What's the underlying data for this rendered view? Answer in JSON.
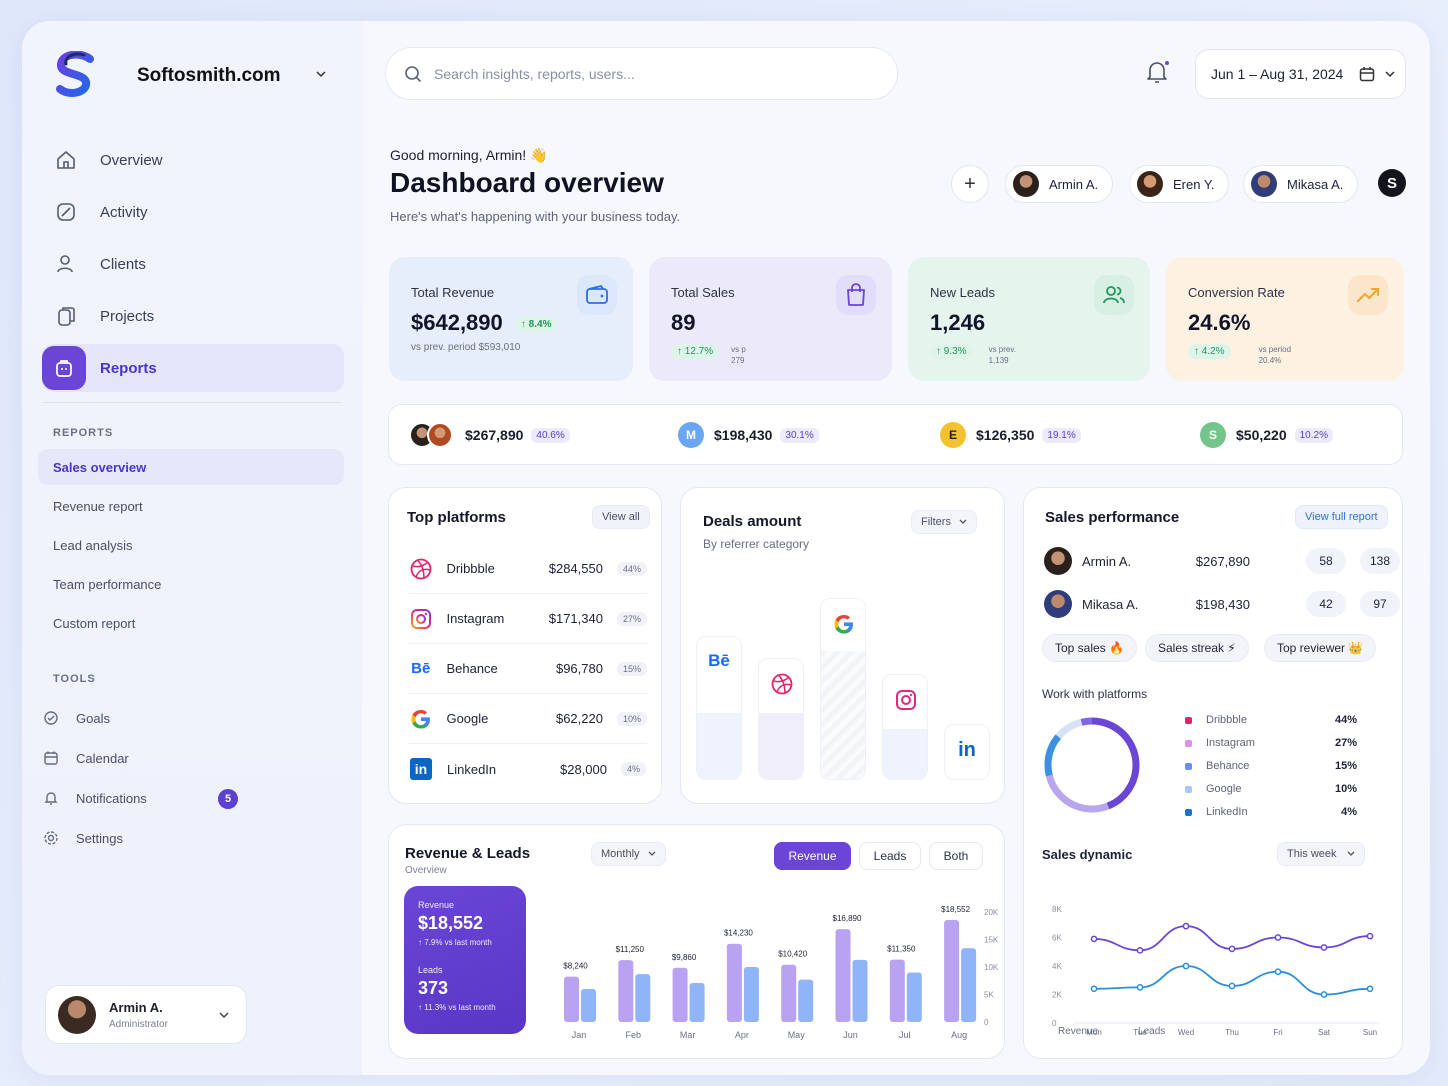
{
  "brand": {
    "name": "Softosmith.com"
  },
  "nav": [
    {
      "label": "Overview"
    },
    {
      "label": "Activity"
    },
    {
      "label": "Clients"
    },
    {
      "label": "Projects"
    },
    {
      "label": "Reports"
    }
  ],
  "reports_section": {
    "title": "REPORTS",
    "items": [
      "Sales overview",
      "Revenue report",
      "Lead analysis",
      "Team performance",
      "Custom report"
    ]
  },
  "tools_section": {
    "title": "TOOLS",
    "items": [
      "Goals",
      "Calendar",
      "Notifications",
      "Settings"
    ],
    "notifications_count": "5"
  },
  "user": {
    "name": "Armin A.",
    "role": "Administrator"
  },
  "search": {
    "placeholder": "Search insights, reports, users..."
  },
  "date_range": "Jun 1 – Aug 31, 2024",
  "header": {
    "greeting": "Good morning, Armin! 👋",
    "title": "Dashboard overview",
    "subtitle": "Here's what's happening with your business today.",
    "team": [
      "Armin A.",
      "Eren Y.",
      "Mikasa A."
    ],
    "account_initial": "S"
  },
  "stats": [
    {
      "label": "Total Revenue",
      "value": "$642,890",
      "change": "↑ 8.4%",
      "note": "vs prev. period  $593,010",
      "icon": "wallet-icon",
      "color": "#2c6fe0"
    },
    {
      "label": "Total Sales",
      "value": "89",
      "change": "↑ 12.7%",
      "note_a": "vs p",
      "note_b": "279",
      "icon": "shopping-bag-icon",
      "color": "#6a45d6"
    },
    {
      "label": "New Leads",
      "value": "1,246",
      "change": "↑ 9.3%",
      "note_a": "vs prev.",
      "note_b": "1,139",
      "icon": "users-icon",
      "color": "#1c9a5a"
    },
    {
      "label": "Conversion Rate",
      "value": "24.6%",
      "change": "↑ 4.2%",
      "note_a": "vs period",
      "note_b": "20.4%",
      "icon": "trend-up-icon",
      "color": "#f0a623"
    }
  ],
  "referrers": [
    {
      "value": "$267,890",
      "pct": "40.6%"
    },
    {
      "initial": "M",
      "value": "$198,430",
      "pct": "30.1%",
      "color": "#6aa6f2"
    },
    {
      "initial": "E",
      "value": "$126,350",
      "pct": "19.1%",
      "color": "#f2c230"
    },
    {
      "initial": "S",
      "value": "$50,220",
      "pct": "10.2%",
      "color": "#74c58c"
    }
  ],
  "top_platforms": {
    "title": "Top platforms",
    "action": "View all",
    "rows": [
      {
        "name": "Dribbble",
        "value": "$284,550",
        "pct": "44%",
        "icon": "dribbble-icon"
      },
      {
        "name": "Instagram",
        "value": "$171,340",
        "pct": "27%",
        "icon": "instagram-icon"
      },
      {
        "name": "Behance",
        "value": "$96,780",
        "pct": "15%",
        "icon": "behance-icon"
      },
      {
        "name": "Google",
        "value": "$62,220",
        "pct": "10%",
        "icon": "google-icon"
      },
      {
        "name": "LinkedIn",
        "value": "$28,000",
        "pct": "4%",
        "icon": "linkedin-icon"
      }
    ]
  },
  "deals": {
    "title": "Deals amount",
    "subtitle": "By referrer category",
    "filter": "Filters",
    "behance_label": "Bē",
    "linkedin_label": "in"
  },
  "sales_performance": {
    "title": "Sales performance",
    "action": "View full report",
    "rows": [
      {
        "name": "Armin A.",
        "amount": "$267,890",
        "a": "58",
        "b": "138"
      },
      {
        "name": "Mikasa A.",
        "amount": "$198,430",
        "a": "42",
        "b": "97"
      }
    ],
    "tags": [
      "Top sales 🔥",
      "Sales streak ⚡",
      "Top reviewer 👑"
    ],
    "platforms_title": "Work with platforms",
    "platforms": [
      {
        "name": "Dribbble",
        "pct": "44%",
        "color": "#e0246b"
      },
      {
        "name": "Instagram",
        "pct": "27%",
        "color": "#d993e6"
      },
      {
        "name": "Behance",
        "pct": "15%",
        "color": "#6c8ef2"
      },
      {
        "name": "Google",
        "pct": "10%",
        "color": "#a9c7f4"
      },
      {
        "name": "LinkedIn",
        "pct": "4%",
        "color": "#1a72c9"
      }
    ],
    "dynamic_title": "Sales dynamic",
    "dynamic_range": "This week"
  },
  "revenue_leads": {
    "title": "Revenue & Leads",
    "subtitle": "Overview",
    "period": "Monthly",
    "tabs": [
      "Revenue",
      "Leads",
      "Both"
    ],
    "summary": {
      "revenue_label": "Revenue",
      "revenue_value": "$18,552",
      "revenue_change": "↑ 7.9% vs last month",
      "leads_label": "Leads",
      "leads_value": "373",
      "leads_change": "↑ 11.3% vs last month"
    }
  },
  "chart_data": [
    {
      "type": "bar",
      "title": "Revenue & Leads",
      "categories": [
        "Jan",
        "Feb",
        "Mar",
        "Apr",
        "May",
        "Jun",
        "Jul",
        "Aug"
      ],
      "series": [
        {
          "name": "Revenue",
          "values": [
            8240,
            11250,
            9860,
            14230,
            10420,
            16890,
            11350,
            18552
          ],
          "labels": [
            "$8,240",
            "$11,250",
            "$9,860",
            "$14,230",
            "$10,420",
            "$16,890",
            "$11,350",
            "$18,552"
          ],
          "color": "#b9a2f2"
        },
        {
          "name": "Leads",
          "values": [
            6000,
            8700,
            7100,
            10000,
            7700,
            11300,
            9000,
            13400
          ],
          "color": "#8fb4f8"
        }
      ],
      "yticks": [
        "20K",
        "15K",
        "10K",
        "5K",
        "0"
      ],
      "ylim": [
        0,
        20000
      ]
    },
    {
      "type": "line",
      "title": "Sales dynamic",
      "categories": [
        "Mon",
        "Tue",
        "Wed",
        "Thu",
        "Fri",
        "Sat",
        "Sun"
      ],
      "series": [
        {
          "name": "Revenue",
          "values": [
            5900,
            5100,
            6800,
            5200,
            6000,
            5300,
            6100
          ],
          "color": "#6a45d6"
        },
        {
          "name": "Leads",
          "values": [
            2400,
            2500,
            4000,
            2600,
            3600,
            2000,
            2400
          ],
          "color": "#2b8fdc"
        }
      ],
      "yticks": [
        "8K",
        "6K",
        "4K",
        "2K",
        "0"
      ],
      "ylim": [
        0,
        8000
      ]
    },
    {
      "type": "pie",
      "title": "Work with platforms",
      "categories": [
        "Dribbble",
        "Instagram",
        "Behance",
        "Google",
        "LinkedIn"
      ],
      "values": [
        44,
        27,
        15,
        10,
        4
      ]
    }
  ]
}
